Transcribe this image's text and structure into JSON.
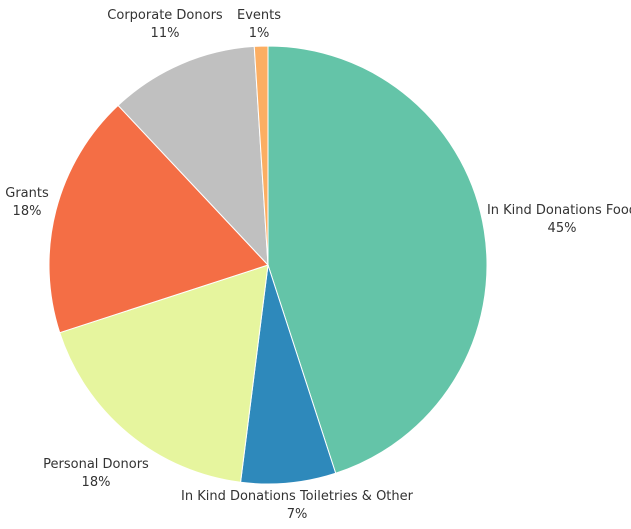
{
  "chart_data": {
    "type": "pie",
    "title": "",
    "start_angle_deg": 0,
    "direction": "clockwise",
    "slices": [
      {
        "label": "In Kind Donations Food",
        "value": 45,
        "pct_label": "45%",
        "color": "#64C4A8"
      },
      {
        "label": "In Kind Donations Toiletries & Other",
        "value": 7,
        "pct_label": "7%",
        "color": "#2E89BB"
      },
      {
        "label": "Personal Donors",
        "value": 18,
        "pct_label": "18%",
        "color": "#E6F59E"
      },
      {
        "label": "Grants",
        "value": 18,
        "pct_label": "18%",
        "color": "#F46E45"
      },
      {
        "label": "Corporate Donors",
        "value": 11,
        "pct_label": "11%",
        "color": "#C0C0C0"
      },
      {
        "label": "Events",
        "value": 1,
        "pct_label": "1%",
        "color": "#FCAE62"
      }
    ]
  }
}
